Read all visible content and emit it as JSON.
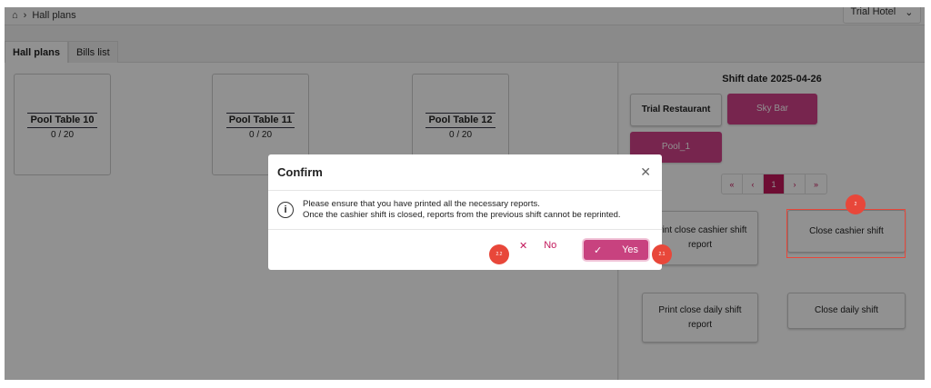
{
  "header": {
    "breadcrumb": "Hall plans",
    "hotel_select": "Trial Hotel"
  },
  "tabs": [
    {
      "label": "Hall plans",
      "active": true
    },
    {
      "label": "Bills list",
      "active": false
    }
  ],
  "tables": [
    {
      "name": "Pool Table 10",
      "occupancy": "0 / 20"
    },
    {
      "name": "Pool Table 11",
      "occupancy": "0 / 20"
    },
    {
      "name": "Pool Table 12",
      "occupancy": "0 / 20"
    }
  ],
  "right_panel": {
    "shift_date": "Shift date 2025-04-26",
    "outlets": [
      {
        "label": "Trial Restaurant",
        "selected": false
      },
      {
        "label": "Sky Bar",
        "selected": true
      },
      {
        "label": "Pool_1",
        "selected": true
      }
    ],
    "pagination": {
      "first": "«",
      "prev": "‹",
      "page": "1",
      "next": "›",
      "last": "»"
    },
    "actions": {
      "print_cashier": "Print close cashier shift report",
      "close_cashier": "Close cashier shift",
      "print_daily": "Print close daily shift report",
      "close_daily": "Close daily shift"
    }
  },
  "dialog": {
    "title": "Confirm",
    "line1": "Please ensure that you have printed all the necessary reports.",
    "line2": "Once the cashier shift is closed, reports from the previous shift cannot be reprinted.",
    "no": "No",
    "yes": "Yes"
  },
  "annotations": {
    "step2": "2",
    "step21": "2.1",
    "step22": "2.2"
  },
  "colors": {
    "accent": "#c2185b",
    "annotation": "#e8473a"
  }
}
